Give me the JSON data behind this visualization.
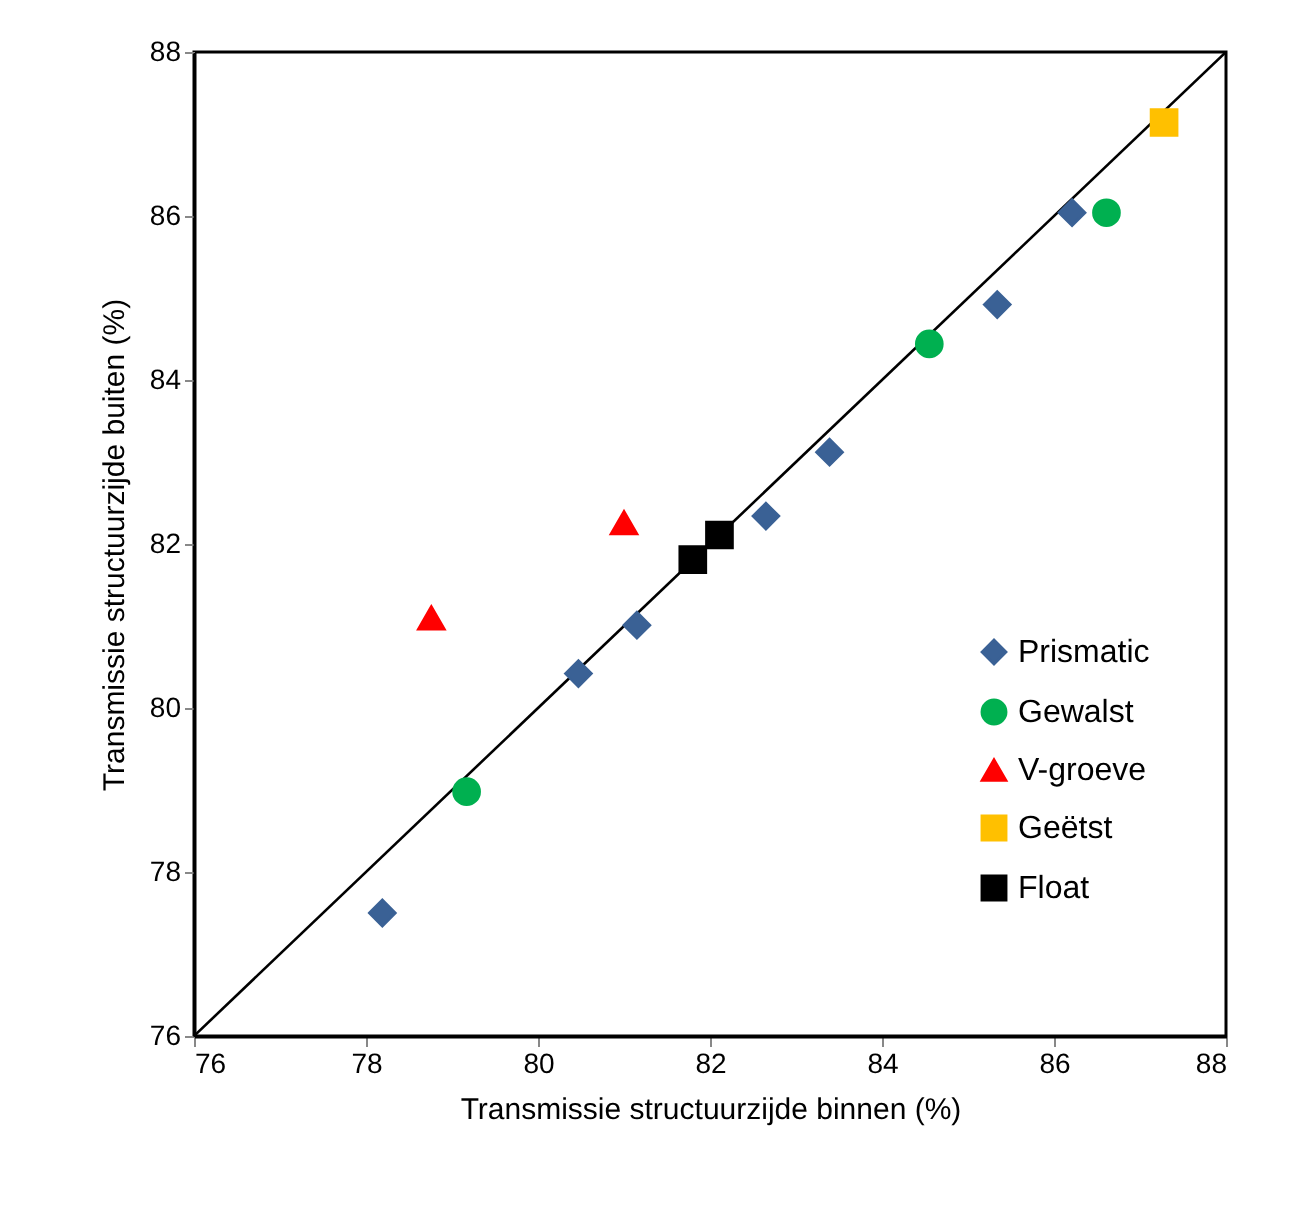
{
  "chart_data": {
    "type": "scatter",
    "xlabel": "Transmissie structuurzijde binnen (%)",
    "ylabel": "Transmissie structuurzijde buiten (%)",
    "xlim": [
      76,
      88
    ],
    "xticks": [
      76,
      78,
      80,
      82,
      84,
      86,
      88
    ],
    "ylim": [
      76,
      88
    ],
    "yticks": [
      76,
      78,
      80,
      82,
      84,
      86,
      88
    ],
    "legend": "right",
    "grid": false,
    "series": [
      {
        "name": "Prismatic",
        "color": "#3a6195",
        "marker": "diamond",
        "x": [
          78.19,
          80.47,
          81.15,
          82.65,
          83.39,
          85.34,
          86.21
        ],
        "values": [
          77.5,
          80.42,
          81.01,
          82.34,
          83.12,
          84.92,
          86.04
        ]
      },
      {
        "name": "Gewalst",
        "color": "#00b050",
        "marker": "circle",
        "x": [
          79.17,
          84.55,
          86.61
        ],
        "values": [
          78.98,
          84.44,
          86.04
        ]
      },
      {
        "name": "V-groeve",
        "color": "#ff0000",
        "marker": "triangle",
        "x": [
          78.76,
          81.0
        ],
        "values": [
          81.1,
          82.26
        ]
      },
      {
        "name": "Geëtst",
        "color": "#ffc000",
        "marker": "square",
        "x": [
          87.28
        ],
        "values": [
          87.14
        ]
      },
      {
        "name": "Float",
        "color": "#000000",
        "marker": "square",
        "x": [
          81.8,
          82.11
        ],
        "values": [
          81.81,
          82.11
        ]
      },
      {
        "type": "line",
        "color": "#000000",
        "x": [
          76,
          88
        ],
        "values": [
          76,
          88
        ]
      }
    ]
  }
}
